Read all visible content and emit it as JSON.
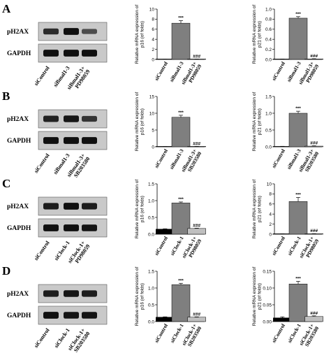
{
  "panels": [
    {
      "letter": "A",
      "blot": {
        "rows": [
          "pH2AX",
          "GAPDH"
        ],
        "lanes": [
          "siControl",
          "siBmal1-3",
          "siBmal1-3+\nPD98059"
        ],
        "intensity": [
          [
            0.72,
            0.95,
            0.45
          ],
          [
            0.95,
            0.95,
            0.95
          ]
        ]
      }
    },
    {
      "letter": "B",
      "blot": {
        "rows": [
          "pH2AX",
          "GAPDH"
        ],
        "lanes": [
          "siControl",
          "siBmal1-3",
          "siBmal1-3+\nSB203580"
        ],
        "intensity": [
          [
            0.8,
            0.9,
            0.65
          ],
          [
            0.95,
            0.95,
            0.95
          ]
        ]
      }
    },
    {
      "letter": "C",
      "blot": {
        "rows": [
          "pH2AX",
          "GAPDH"
        ],
        "lanes": [
          "siControl",
          "siClock-1",
          "siClock-1+\nPD98059"
        ],
        "intensity": [
          [
            0.85,
            0.95,
            0.85
          ],
          [
            0.95,
            0.95,
            0.92
          ]
        ]
      }
    },
    {
      "letter": "D",
      "blot": {
        "rows": [
          "pH2AX",
          "GAPDH"
        ],
        "lanes": [
          "siControl",
          "siClock-1",
          "siClock-1+\nSB203580"
        ],
        "intensity": [
          [
            0.85,
            0.9,
            0.85
          ],
          [
            0.95,
            0.92,
            0.92
          ]
        ]
      }
    }
  ],
  "chart_data": [
    {
      "type": "bar",
      "panel": "A",
      "ylabel": "Relative mRNA expression of\np16 (of folds)",
      "categories": [
        "siControl",
        "siBmal1-3",
        "siBmal1-3+\nPD98059"
      ],
      "values": [
        0.02,
        7.2,
        0.05
      ],
      "errors": [
        0.02,
        0.5,
        0.02
      ],
      "ylim": [
        0,
        10
      ],
      "yticks": [
        0,
        2,
        4,
        6,
        8,
        10
      ],
      "tick_labels": [
        "0",
        "2",
        "4",
        "6",
        "8",
        "10"
      ],
      "fills": [
        "#000000",
        "#7f7f7f",
        "#bfbfbf"
      ],
      "significance": [
        "",
        "***",
        "###"
      ]
    },
    {
      "type": "bar",
      "panel": "A",
      "ylabel": "Relative mRNA expression of\np21 (of folds)",
      "categories": [
        "siControl",
        "siBmal1-3",
        "siBmal1-3+\nPD98059"
      ],
      "values": [
        0.005,
        0.82,
        0.01
      ],
      "errors": [
        0.003,
        0.03,
        0.005
      ],
      "ylim": [
        0,
        1.0
      ],
      "yticks": [
        0,
        0.2,
        0.4,
        0.6,
        0.8,
        1.0
      ],
      "tick_labels": [
        "0.0",
        "0.2",
        "0.4",
        "0.6",
        "0.8",
        "1.0"
      ],
      "fills": [
        "#000000",
        "#7f7f7f",
        "#bfbfbf"
      ],
      "significance": [
        "",
        "***",
        "###"
      ]
    },
    {
      "type": "bar",
      "panel": "B",
      "ylabel": "Relative mRNA expression of\np16 (of folds)",
      "categories": [
        "siControl",
        "siBmal1-3",
        "siBmal1-3+\nSB203580"
      ],
      "values": [
        0.05,
        8.8,
        0.1
      ],
      "errors": [
        0.02,
        0.6,
        0.05
      ],
      "ylim": [
        0,
        15
      ],
      "yticks": [
        0,
        5,
        10,
        15
      ],
      "tick_labels": [
        "0",
        "5",
        "10",
        "15"
      ],
      "fills": [
        "#000000",
        "#7f7f7f",
        "#bfbfbf"
      ],
      "significance": [
        "",
        "***",
        "###"
      ]
    },
    {
      "type": "bar",
      "panel": "B",
      "ylabel": "Relative mRNA expression of\np21 (of folds)",
      "categories": [
        "siControl",
        "siBmal1-3",
        "siBmal1-3+\nSB203580"
      ],
      "values": [
        0.01,
        1.0,
        0.02
      ],
      "errors": [
        0.005,
        0.06,
        0.01
      ],
      "ylim": [
        0,
        1.5
      ],
      "yticks": [
        0,
        0.5,
        1.0,
        1.5
      ],
      "tick_labels": [
        "0.0",
        "0.5",
        "1.0",
        "1.5"
      ],
      "fills": [
        "#000000",
        "#7f7f7f",
        "#bfbfbf"
      ],
      "significance": [
        "",
        "***",
        "###"
      ]
    },
    {
      "type": "bar",
      "panel": "C",
      "ylabel": "Relative mRNA expression of\np16 (of folds)",
      "categories": [
        "siControl",
        "siClock-1",
        "siClock-1+\nPD98059"
      ],
      "values": [
        0.15,
        0.93,
        0.17
      ],
      "errors": [
        0.01,
        0.03,
        0.01
      ],
      "ylim": [
        0,
        1.5
      ],
      "yticks": [
        0,
        0.5,
        1.0,
        1.5
      ],
      "tick_labels": [
        "0.0",
        "0.5",
        "1.0",
        "1.5"
      ],
      "fills": [
        "#000000",
        "#7f7f7f",
        "#bfbfbf"
      ],
      "significance": [
        "",
        "***",
        "###"
      ]
    },
    {
      "type": "bar",
      "panel": "C",
      "ylabel": "Relative mRNA expression of\np21 (of folds)",
      "categories": [
        "siControl",
        "siClock-1",
        "siClock-1+\nPD98059"
      ],
      "values": [
        0.05,
        6.5,
        0.08
      ],
      "errors": [
        0.02,
        0.8,
        0.03
      ],
      "ylim": [
        0,
        10
      ],
      "yticks": [
        0,
        2,
        4,
        6,
        8,
        10
      ],
      "tick_labels": [
        "0",
        "2",
        "4",
        "6",
        "8",
        "10"
      ],
      "fills": [
        "#000000",
        "#7f7f7f",
        "#bfbfbf"
      ],
      "significance": [
        "",
        "***",
        "###"
      ]
    },
    {
      "type": "bar",
      "panel": "D",
      "ylabel": "Relative mRNA expression of\np16 (of folds)",
      "categories": [
        "siControl",
        "siClock-1",
        "siClock-1+\nSB203580"
      ],
      "values": [
        0.13,
        1.1,
        0.13
      ],
      "errors": [
        0.01,
        0.04,
        0.01
      ],
      "ylim": [
        0,
        1.5
      ],
      "yticks": [
        0,
        0.5,
        1.0,
        1.5
      ],
      "tick_labels": [
        "0.0",
        "0.5",
        "1.0",
        "1.5"
      ],
      "fills": [
        "#000000",
        "#7f7f7f",
        "#bfbfbf"
      ],
      "significance": [
        "",
        "***",
        "###"
      ]
    },
    {
      "type": "bar",
      "panel": "D",
      "ylabel": "Relative mRNA expression of\np21 (of folds)",
      "categories": [
        "siControl",
        "siClock-1",
        "siClock-1+\nSB203580"
      ],
      "values": [
        0.011,
        0.112,
        0.015
      ],
      "errors": [
        0.003,
        0.008,
        0.002
      ],
      "ylim": [
        0,
        0.15
      ],
      "yticks": [
        0,
        0.05,
        0.1,
        0.15
      ],
      "tick_labels": [
        "0.00",
        "0.05",
        "0.10",
        "0.15"
      ],
      "fills": [
        "#000000",
        "#7f7f7f",
        "#bfbfbf"
      ],
      "significance": [
        "",
        "***",
        "###"
      ]
    }
  ]
}
